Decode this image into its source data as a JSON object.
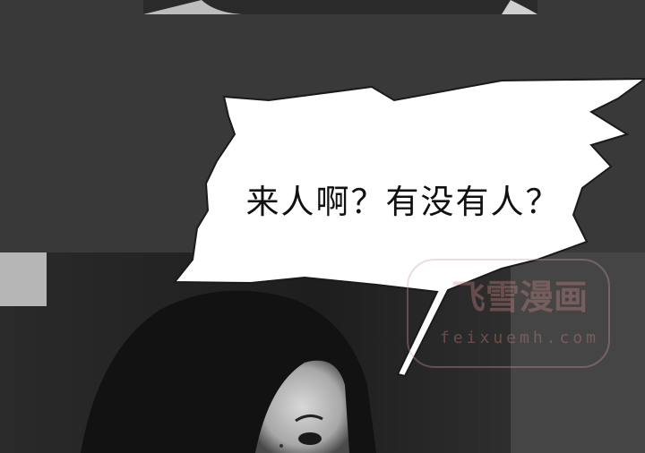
{
  "bubble": {
    "text": "来人啊？有没有人？"
  },
  "watermark": {
    "title": "飞雪漫画",
    "url": "feixuemh.com"
  }
}
